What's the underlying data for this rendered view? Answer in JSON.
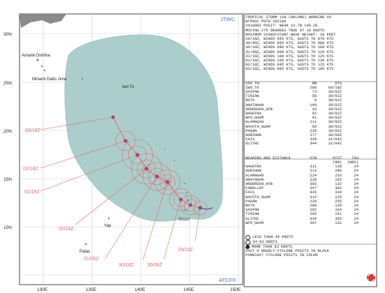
{
  "map": {
    "agency_top": "JTWC",
    "agency_bottom": "ATCF®",
    "lat_labels": [
      "30N",
      "25N",
      "20N",
      "15N",
      "10N"
    ],
    "lon_labels": [
      "130E",
      "135E",
      "140E",
      "145E",
      "150E"
    ],
    "places": [
      "Amami Oshima",
      "Minami Daito Jima",
      "Iwo To",
      "Guam",
      "Yap",
      "Palau"
    ],
    "forecast_tau_labels": [
      "03/18Z",
      "02/18Z",
      "01/18Z",
      "31/18Z",
      "31/06Z",
      "30/18Z",
      "30/06Z",
      "29/18Z"
    ],
    "colors": {
      "wind_area": "#9bc5c1",
      "land": "#8a8a8a",
      "grid": "#c8c8c8",
      "forecast_line": "#e06a6a",
      "track": "#7a3c8c"
    }
  },
  "panel": {
    "header_lines": [
      "TROPICAL STORM 11W (HALONG) WARNING #6",
      "WTPN31 PGTW 292100",
      "291800Z POSIT: NEAR 13.7N 146.2E",
      "MOVING 275 DEGREES TRUE AT 10 KNOTS",
      "MAXIMUM SIGNIFICANT WAVE HEIGHT: 18 FEET",
      "29/18Z, WINDS 055 KTS, GUSTS TO 070 KTS",
      "30/06Z, WINDS 065 KTS, GUSTS TO 080 KTS",
      "30/18Z, WINDS 080 KTS, GUSTS TO 100 KTS",
      "31/06Z, WINDS 090 KTS, GUSTS TO 110 KTS",
      "31/18Z, WINDS 100 KTS, GUSTS TO 125 KTS",
      "01/18Z, WINDS 105 KTS, GUSTS TO 130 KTS",
      "02/18Z, WINDS 095 KTS, GUSTS TO 115 KTS",
      "03/18Z, WINDS 085 KTS, GUSTS TO 105 KTS"
    ],
    "cpa_headers": [
      "CPA TO:",
      "NM",
      "DTG"
    ],
    "cpa_rows": [
      [
        "IWO_TO",
        "288",
        "03/18Z"
      ],
      [
        "SAIPAN",
        "73",
        "30/02Z"
      ],
      [
        "TINIAN",
        "58",
        "30/02Z"
      ],
      [
        "ROTA",
        "0",
        "30/02Z"
      ],
      [
        "ANATAHAN",
        "140",
        "30/02Z"
      ],
      [
        "ANDERSEN_AFB",
        "33",
        "30/02Z"
      ],
      [
        "HAGATNA",
        "52",
        "30/02Z"
      ],
      [
        "WFO_GUAM",
        "41",
        "30/02Z"
      ],
      [
        "ALAMAGAN",
        "211",
        "30/02Z"
      ],
      [
        "NAVSTA_GUAM",
        "50",
        "30/02Z"
      ],
      [
        "PAGAN",
        "239",
        "30/06Z"
      ],
      [
        "AGRIHAN",
        "277",
        "30/09Z"
      ],
      [
        "FAIS",
        "330",
        "31/04Z"
      ],
      [
        "ULITHI",
        "344",
        "31/04Z"
      ]
    ],
    "bd_headers": [
      "BEARING AND DISTANCE",
      "DIR",
      "DIST",
      "TAU"
    ],
    "bd_subheaders": [
      "",
      "",
      "(NM)",
      "(HRS)"
    ],
    "bd_rows": [
      [
        "HAGATNA",
        "311",
        "138",
        "24"
      ],
      [
        "AGRIHAN",
        "213",
        "286",
        "24"
      ],
      [
        "ALAMAGAN",
        "224",
        "233",
        "24"
      ],
      [
        "ANATAHAN",
        "239",
        "183",
        "24"
      ],
      [
        "ANDERSEN_AFB",
        "303",
        "132",
        "24"
      ],
      [
        "FARALLEP",
        "347",
        "382",
        "24"
      ],
      [
        "FAIS",
        "026",
        "334",
        "24"
      ],
      [
        "NAVSTA_GUAM",
        "312",
        "125",
        "24"
      ],
      [
        "PAGAN",
        "220",
        "255",
        "24"
      ],
      [
        "ROTA",
        "288",
        "135",
        "24"
      ],
      [
        "SAIPAN",
        "262",
        "164",
        "24"
      ],
      [
        "TINIAN",
        "266",
        "151",
        "24"
      ],
      [
        "ULITHI",
        "034",
        "355",
        "24"
      ],
      [
        "WFO_GUAM",
        "307",
        "131",
        "24"
      ]
    ],
    "legend": [
      "LESS THAN 34 KNOTS",
      "34-63 KNOTS",
      "MORE THAN 63 KNOTS",
      "PAST 6 HOURLY CYCLONE POSITS IN BLACK",
      "FORECAST CYCLONE POSITS IN COLOR"
    ]
  }
}
